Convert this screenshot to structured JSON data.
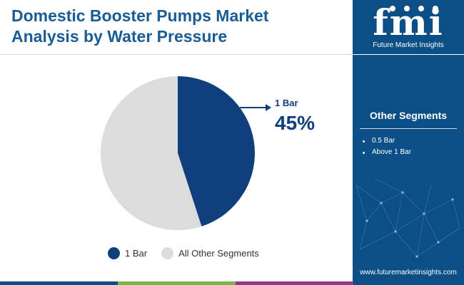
{
  "title_lines": [
    "Domestic Booster Pumps Market",
    "Analysis by Water Pressure"
  ],
  "chart_data": {
    "type": "pie",
    "title": "Domestic Booster Pumps Market Analysis by Water Pressure",
    "slices": [
      {
        "label": "1 Bar",
        "value": 45,
        "color": "#0f3f7d"
      },
      {
        "label": "All Other Segments",
        "value": 55,
        "color": "#dcdcdc"
      }
    ],
    "callout": {
      "label": "1 Bar",
      "value": "45%"
    },
    "legend": [
      "1 Bar",
      "All Other Segments"
    ],
    "legend_position": "bottom"
  },
  "sidebar": {
    "logo_text": "fmi",
    "logo_caption": "Future Market Insights",
    "heading": "Other Segments",
    "segments": [
      "0.5 Bar",
      "Above 1 Bar"
    ],
    "website": "www.futuremarketinsights.com"
  },
  "colors": {
    "brand_blue": "#0b4f86",
    "title_blue": "#1a5c94",
    "slice_primary": "#0f3f7d",
    "slice_other": "#dcdcdc",
    "bottom_bar": [
      "#0b4f86",
      "#7ab648",
      "#8e3b8f",
      "#0b4f86"
    ]
  }
}
